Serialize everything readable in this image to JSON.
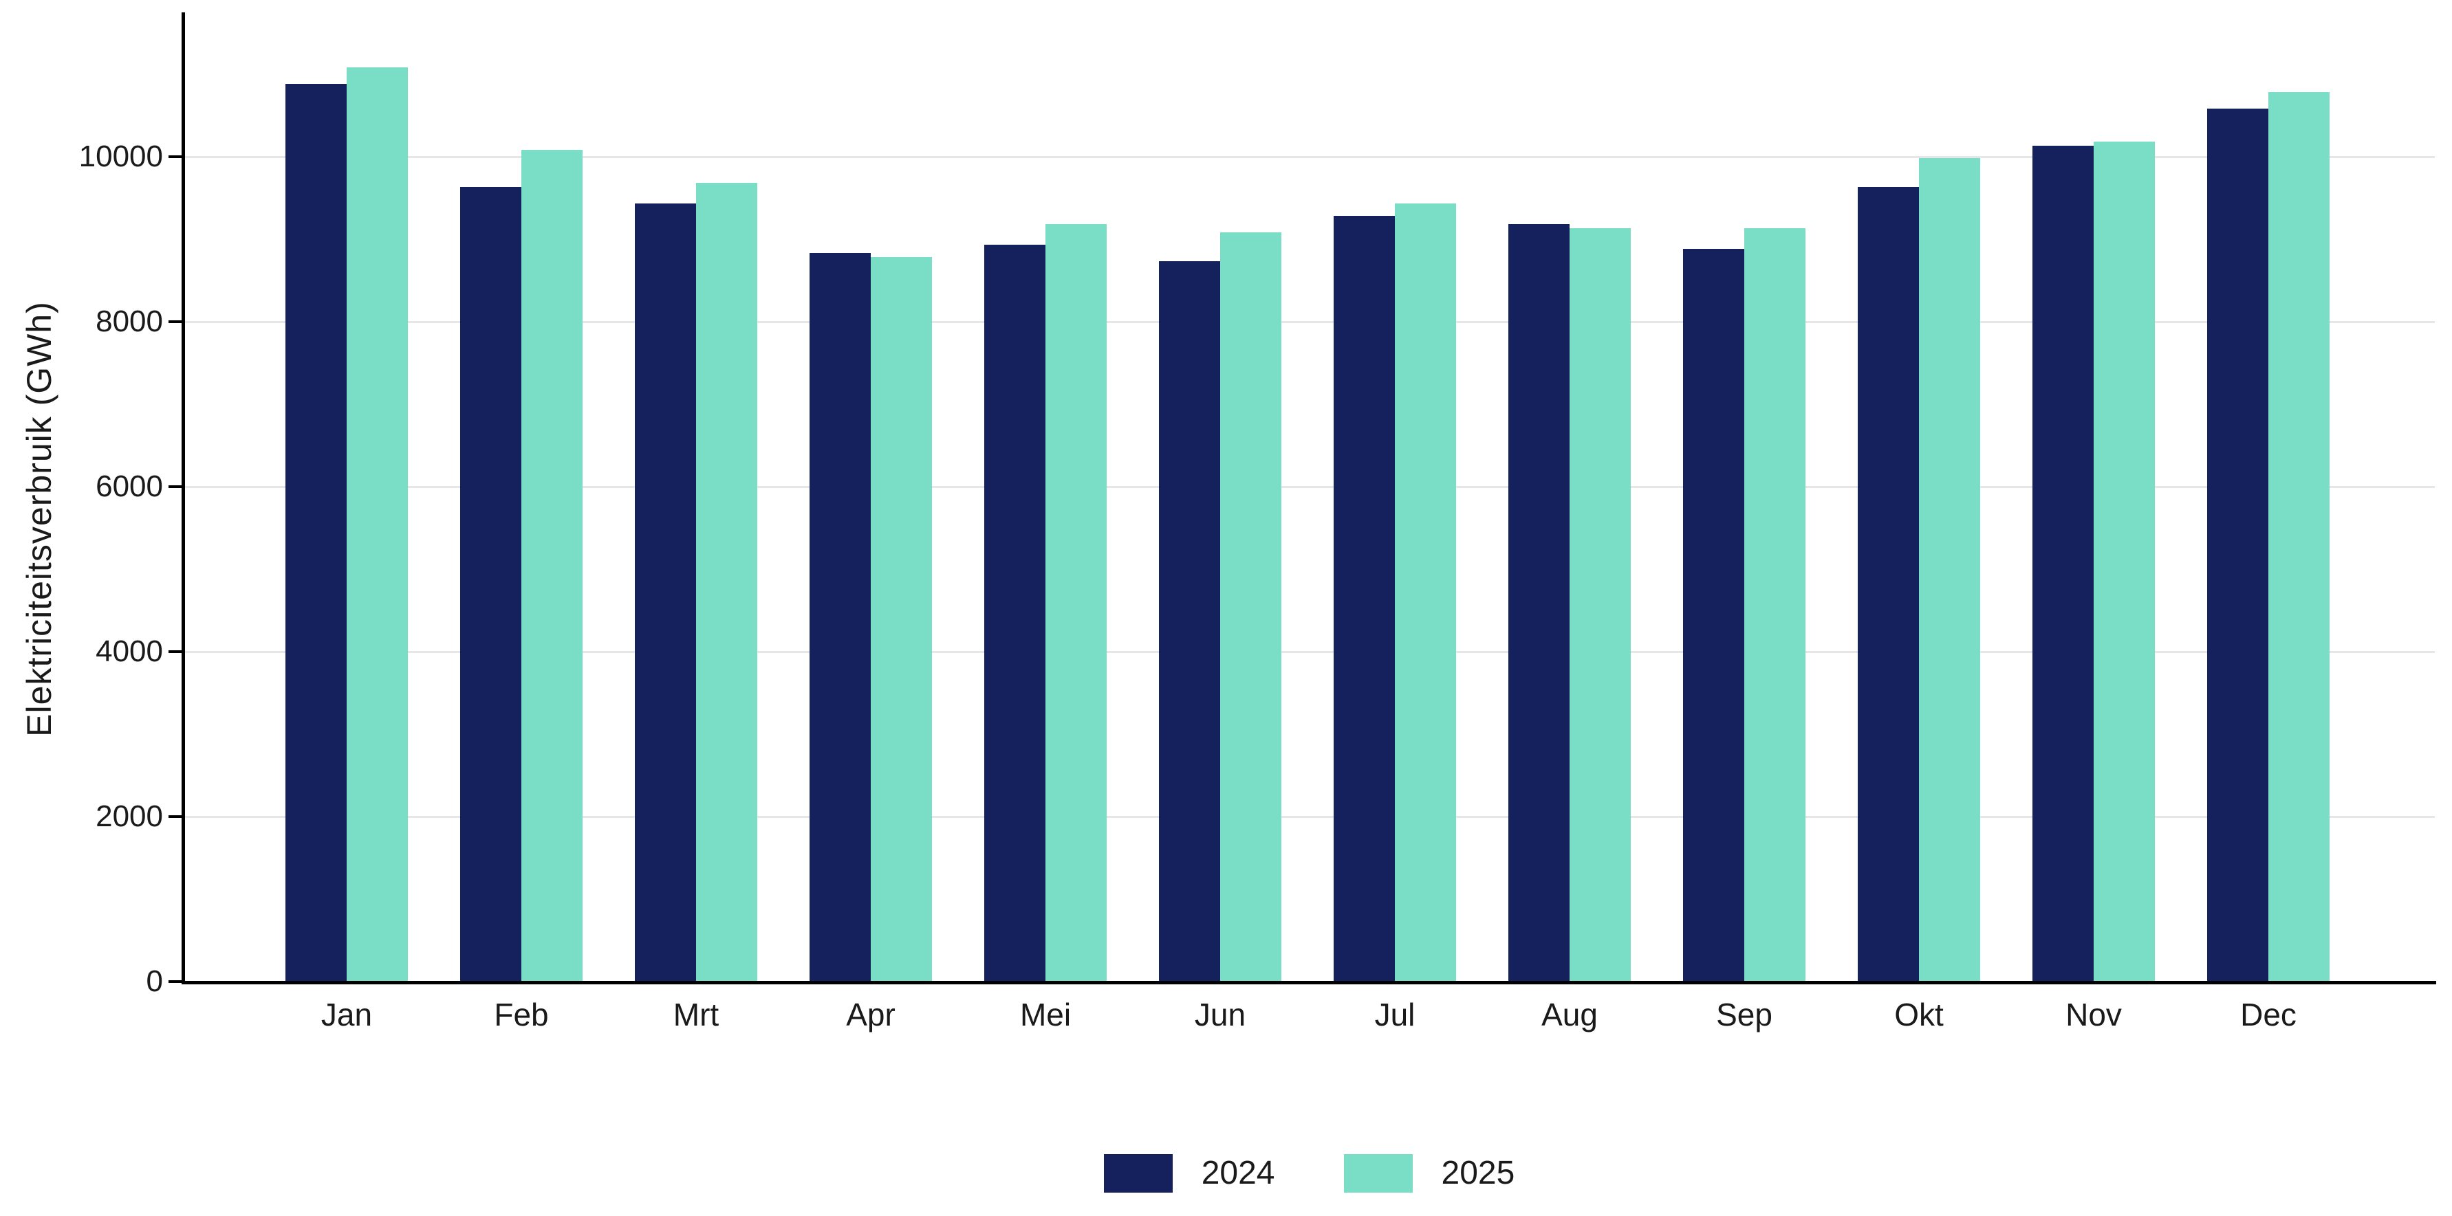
{
  "chart_data": {
    "type": "bar",
    "title": "",
    "xlabel": "",
    "ylabel": "Elektriciteitsverbruik (GWh)",
    "categories": [
      "Jan",
      "Feb",
      "Mrt",
      "Apr",
      "Mei",
      "Jun",
      "Jul",
      "Aug",
      "Sep",
      "Okt",
      "Nov",
      "Dec"
    ],
    "series": [
      {
        "name": "2024",
        "color": "#14215c",
        "values": [
          10900,
          9650,
          9450,
          8850,
          8950,
          8750,
          9300,
          9200,
          8900,
          9650,
          10150,
          10600
        ]
      },
      {
        "name": "2025",
        "color": "#7adec6",
        "values": [
          11100,
          10100,
          9700,
          8800,
          9200,
          9100,
          9450,
          9150,
          9150,
          10000,
          10200,
          10800
        ]
      }
    ],
    "yticks": [
      0,
      2000,
      4000,
      6000,
      8000,
      10000
    ],
    "ylim": [
      0,
      11730
    ],
    "grid": "horizontal",
    "legend_position": "bottom-center",
    "colors": {
      "axis": "#000000",
      "gridline": "#e6e6e6",
      "text": "#1a1a1a",
      "background": "#ffffff"
    }
  }
}
